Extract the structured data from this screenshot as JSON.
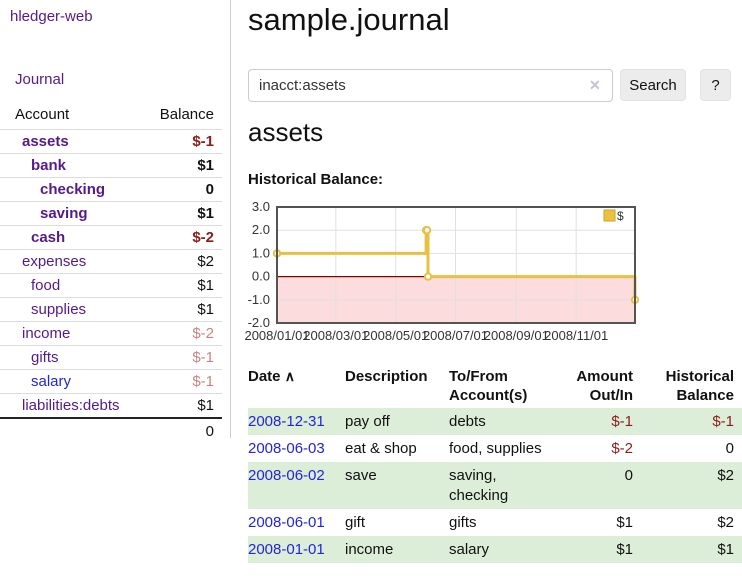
{
  "app": {
    "brand": "hledger-web",
    "journal_label": "Journal"
  },
  "colors": {
    "link_purple": "#551a8b",
    "link_blue": "#2424d9",
    "negative_strong": "#8b1c1c",
    "negative_soft": "#c98484",
    "row_stripe_green": "#dcedd8",
    "button_gray": "#ececec"
  },
  "sidebar": {
    "headers": [
      "Account",
      "Balance"
    ],
    "accounts": [
      {
        "name": "assets",
        "level": 0,
        "bold": true,
        "balance": "$-1",
        "bal_class": "neg-strong",
        "link": "purple"
      },
      {
        "name": "bank",
        "level": 1,
        "bold": true,
        "balance": "$1",
        "bal_class": "",
        "link": "purple"
      },
      {
        "name": "checking",
        "level": 2,
        "bold": true,
        "balance": "0",
        "bal_class": "",
        "link": "purple"
      },
      {
        "name": "saving",
        "level": 2,
        "bold": true,
        "balance": "$1",
        "bal_class": "",
        "link": "purple"
      },
      {
        "name": "cash",
        "level": 1,
        "bold": true,
        "balance": "$-2",
        "bal_class": "neg-strong",
        "link": "purple"
      },
      {
        "name": "expenses",
        "level": 0,
        "bold": false,
        "balance": "$2",
        "bal_class": "",
        "link": "purple"
      },
      {
        "name": "food",
        "level": 1,
        "bold": false,
        "balance": "$1",
        "bal_class": "",
        "link": "purple"
      },
      {
        "name": "supplies",
        "level": 1,
        "bold": false,
        "balance": "$1",
        "bal_class": "",
        "link": "purple"
      },
      {
        "name": "income",
        "level": 0,
        "bold": false,
        "balance": "$-2",
        "bal_class": "neg-soft",
        "link": "purple"
      },
      {
        "name": "gifts",
        "level": 1,
        "bold": false,
        "balance": "$-1",
        "bal_class": "neg-soft",
        "link": "purple"
      },
      {
        "name": "salary",
        "level": 1,
        "bold": false,
        "balance": "$-1",
        "bal_class": "neg-soft",
        "link": "blue"
      },
      {
        "name": "liabilities:debts",
        "level": 0,
        "bold": false,
        "balance": "$1",
        "bal_class": "",
        "link": "purple"
      }
    ],
    "total": "0"
  },
  "main": {
    "title": "sample.journal",
    "search": {
      "value": "inacct:assets",
      "clear_icon": "✕",
      "button_label": "Search",
      "help_label": "?"
    },
    "account_heading": "assets",
    "chart_label": "Historical Balance:"
  },
  "chart_data": {
    "type": "line",
    "style": "steps",
    "title": "Historical Balance",
    "ylim": [
      -2,
      3
    ],
    "x_range_days": 365,
    "y_ticks": [
      {
        "label": "3.0",
        "value": 3
      },
      {
        "label": "2.0",
        "value": 2
      },
      {
        "label": "1.0",
        "value": 1
      },
      {
        "label": "0.0",
        "value": 0
      },
      {
        "label": "-1.0",
        "value": -1
      },
      {
        "label": "-2.0",
        "value": -2
      }
    ],
    "x_ticks": [
      {
        "label": "2008/01/01",
        "day": 0
      },
      {
        "label": "2008/03/01",
        "day": 60
      },
      {
        "label": "2008/05/01",
        "day": 121
      },
      {
        "label": "2008/07/01",
        "day": 182
      },
      {
        "label": "2008/09/01",
        "day": 244
      },
      {
        "label": "2008/11/01",
        "day": 305
      }
    ],
    "series": [
      {
        "name": "$",
        "points": [
          {
            "date": "2008/01/01",
            "day": 0,
            "value": 1
          },
          {
            "date": "2008/06/01",
            "day": 152,
            "value": 2
          },
          {
            "date": "2008/06/02",
            "day": 153,
            "value": 2
          },
          {
            "date": "2008/06/03",
            "day": 154,
            "value": 0
          },
          {
            "date": "2008/12/31",
            "day": 365,
            "value": -1
          }
        ]
      }
    ],
    "legend_position": "top-right",
    "grid": true,
    "colors": {
      "line": "#e9c044",
      "marker_fill": "#ffffff",
      "negative_region": "#fcdcdc",
      "zero_line": "#8b0000",
      "grid": "#e0e0e0",
      "border": "#545454",
      "legend_square": "#ecc23d",
      "legend_square_border": "#c7a432",
      "tick_text": "#333333"
    }
  },
  "register": {
    "headers": [
      "Date",
      "Description",
      "To/From Account(s)",
      "Amount Out/In",
      "Historical Balance"
    ],
    "sort_icon": "∧",
    "rows": [
      {
        "date": "2008-12-31",
        "description": "pay off",
        "accounts": "debts",
        "amount": "$-1",
        "amount_neg": true,
        "balance": "$-1",
        "balance_neg": true
      },
      {
        "date": "2008-06-03",
        "description": "eat & shop",
        "accounts": "food, supplies",
        "amount": "$-2",
        "amount_neg": true,
        "balance": "0",
        "balance_neg": false
      },
      {
        "date": "2008-06-02",
        "description": "save",
        "accounts": "saving, checking",
        "amount": "0",
        "amount_neg": false,
        "balance": "$2",
        "balance_neg": false
      },
      {
        "date": "2008-06-01",
        "description": "gift",
        "accounts": "gifts",
        "amount": "$1",
        "amount_neg": false,
        "balance": "$2",
        "balance_neg": false
      },
      {
        "date": "2008-01-01",
        "description": "income",
        "accounts": "salary",
        "amount": "$1",
        "amount_neg": false,
        "balance": "$1",
        "balance_neg": false
      }
    ]
  }
}
